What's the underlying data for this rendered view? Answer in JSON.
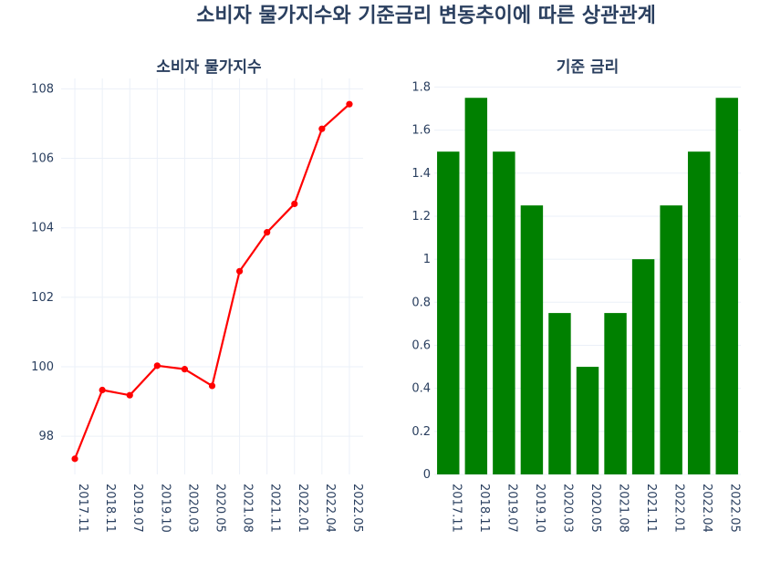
{
  "title": "소비자 물가지수와 기준금리 변동추이에 따른 상관관계",
  "chart_data": [
    {
      "type": "line",
      "title": "소비자 물가지수",
      "categories": [
        "2017.11",
        "2018.11",
        "2019.07",
        "2019.10",
        "2020.03",
        "2020.05",
        "2021.08",
        "2021.11",
        "2022.01",
        "2022.04",
        "2022.05"
      ],
      "values": [
        97.35,
        99.33,
        99.18,
        100.03,
        99.93,
        99.45,
        102.75,
        103.87,
        104.69,
        106.85,
        107.56
      ],
      "ylim": [
        96.9,
        108.3
      ],
      "yticks": [
        98,
        100,
        102,
        104,
        106,
        108
      ],
      "color": "#ff0000",
      "grid": true
    },
    {
      "type": "bar",
      "title": "기준 금리",
      "categories": [
        "2017.11",
        "2018.11",
        "2019.07",
        "2019.10",
        "2020.03",
        "2020.05",
        "2021.08",
        "2021.11",
        "2022.01",
        "2022.04",
        "2022.05"
      ],
      "values": [
        1.5,
        1.75,
        1.5,
        1.25,
        0.75,
        0.5,
        0.75,
        1.0,
        1.25,
        1.5,
        1.75
      ],
      "ylim": [
        0,
        1.84
      ],
      "yticks": [
        0,
        0.2,
        0.4,
        0.6,
        0.8,
        1,
        1.2,
        1.4,
        1.6,
        1.8
      ],
      "ytick_labels": [
        "0",
        "0.2",
        "0.4",
        "0.6",
        "0.8",
        "1",
        "1.2",
        "1.4",
        "1.6",
        "1.8"
      ],
      "color": "#008000",
      "grid": true
    }
  ]
}
